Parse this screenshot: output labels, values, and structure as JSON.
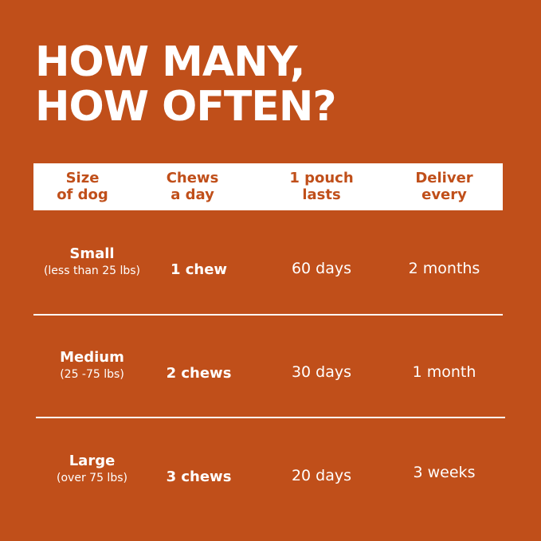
{
  "header": {
    "title_lines": [
      "HOW MANY,",
      "HOW OFTEN?"
    ]
  },
  "table": {
    "columns": [
      [
        "Size",
        "of dog"
      ],
      [
        "Chews",
        "a day"
      ],
      [
        "1 pouch",
        "lasts"
      ],
      [
        "Deliver",
        "every"
      ]
    ],
    "rows": [
      {
        "size": "Small",
        "size_note": "(less than 25 lbs)",
        "chews": "1 chew",
        "lasts": "60 days",
        "deliver": "2 months"
      },
      {
        "size": "Medium",
        "size_note": "(25 -75 lbs)",
        "chews": "2 chews",
        "lasts": "30 days",
        "deliver": "1 month"
      },
      {
        "size": "Large",
        "size_note": "(over 75 lbs)",
        "chews": "3 chews",
        "lasts": "20 days",
        "deliver": "3 weeks"
      }
    ]
  }
}
